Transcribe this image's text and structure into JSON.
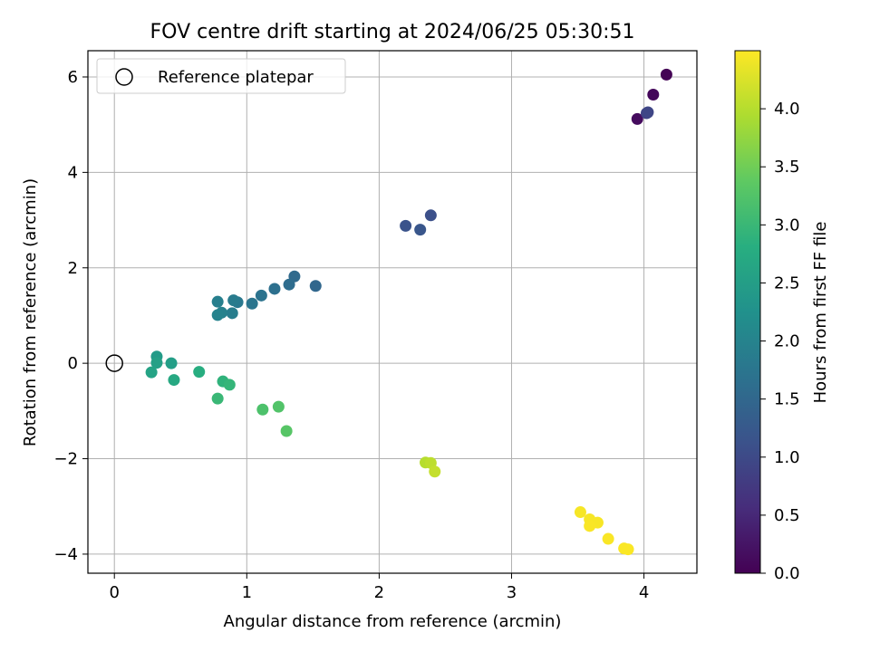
{
  "chart_data": {
    "type": "scatter",
    "title": "FOV centre drift starting at 2024/06/25 05:30:51",
    "xlabel": "Angular distance from reference (arcmin)",
    "ylabel": "Rotation from reference (arcmin)",
    "xlim": [
      -0.2,
      4.4
    ],
    "ylim": [
      -4.4,
      6.55
    ],
    "xticks": [
      0,
      1,
      2,
      3,
      4
    ],
    "xtick_labels": [
      "0",
      "1",
      "2",
      "3",
      "4"
    ],
    "yticks": [
      -4,
      -2,
      0,
      2,
      4,
      6
    ],
    "ytick_labels": [
      "−4",
      "−2",
      "0",
      "2",
      "4",
      "6"
    ],
    "grid": true,
    "legend": {
      "label": "Reference platepar",
      "placement": "top-left",
      "marker": "open-circle"
    },
    "reference_point": {
      "x": 0,
      "y": 0
    },
    "colormap": "viridis",
    "colorbar": {
      "label": "Hours from first FF file",
      "range": [
        0,
        4.5
      ],
      "ticks": [
        0,
        0.5,
        1,
        1.5,
        2,
        2.5,
        3,
        3.5,
        4
      ],
      "tick_labels": [
        "0.0",
        "0.5",
        "1.0",
        "1.5",
        "2.0",
        "2.5",
        "3.0",
        "3.5",
        "4.0"
      ]
    },
    "points": [
      {
        "x": 4.17,
        "y": 6.05,
        "hours": 0.02
      },
      {
        "x": 4.07,
        "y": 5.63,
        "hours": 0.08
      },
      {
        "x": 3.95,
        "y": 5.12,
        "hours": 0.14
      },
      {
        "x": 4.02,
        "y": 5.24,
        "hours": 0.9
      },
      {
        "x": 4.03,
        "y": 5.26,
        "hours": 0.95
      },
      {
        "x": 2.39,
        "y": 3.1,
        "hours": 1.1
      },
      {
        "x": 2.2,
        "y": 2.88,
        "hours": 1.15
      },
      {
        "x": 2.31,
        "y": 2.8,
        "hours": 1.2
      },
      {
        "x": 1.52,
        "y": 1.62,
        "hours": 1.5
      },
      {
        "x": 1.36,
        "y": 1.82,
        "hours": 1.55
      },
      {
        "x": 1.32,
        "y": 1.65,
        "hours": 1.6
      },
      {
        "x": 1.21,
        "y": 1.56,
        "hours": 1.65
      },
      {
        "x": 1.11,
        "y": 1.42,
        "hours": 1.7
      },
      {
        "x": 1.04,
        "y": 1.25,
        "hours": 1.75
      },
      {
        "x": 0.93,
        "y": 1.28,
        "hours": 1.8
      },
      {
        "x": 0.9,
        "y": 1.32,
        "hours": 1.85
      },
      {
        "x": 0.89,
        "y": 1.05,
        "hours": 1.88
      },
      {
        "x": 0.78,
        "y": 1.29,
        "hours": 1.92
      },
      {
        "x": 0.81,
        "y": 1.06,
        "hours": 1.96
      },
      {
        "x": 0.78,
        "y": 1.01,
        "hours": 2.0
      },
      {
        "x": 0.32,
        "y": 0.14,
        "hours": 2.45
      },
      {
        "x": 0.43,
        "y": 0.0,
        "hours": 2.5
      },
      {
        "x": 0.32,
        "y": 0.01,
        "hours": 2.55
      },
      {
        "x": 0.28,
        "y": -0.19,
        "hours": 2.6
      },
      {
        "x": 0.45,
        "y": -0.35,
        "hours": 2.7
      },
      {
        "x": 0.64,
        "y": -0.18,
        "hours": 2.8
      },
      {
        "x": 0.82,
        "y": -0.38,
        "hours": 2.9
      },
      {
        "x": 0.87,
        "y": -0.45,
        "hours": 2.95
      },
      {
        "x": 0.78,
        "y": -0.74,
        "hours": 3.0
      },
      {
        "x": 1.12,
        "y": -0.97,
        "hours": 3.2
      },
      {
        "x": 1.24,
        "y": -0.91,
        "hours": 3.25
      },
      {
        "x": 1.3,
        "y": -1.42,
        "hours": 3.3
      },
      {
        "x": 2.35,
        "y": -2.08,
        "hours": 4.0
      },
      {
        "x": 2.39,
        "y": -2.09,
        "hours": 4.05
      },
      {
        "x": 2.42,
        "y": -2.27,
        "hours": 4.1
      },
      {
        "x": 3.52,
        "y": -3.12,
        "hours": 4.45
      },
      {
        "x": 3.59,
        "y": -3.27,
        "hours": 4.45
      },
      {
        "x": 3.65,
        "y": -3.34,
        "hours": 4.46
      },
      {
        "x": 3.59,
        "y": -3.41,
        "hours": 4.47
      },
      {
        "x": 3.73,
        "y": -3.68,
        "hours": 4.47
      },
      {
        "x": 3.85,
        "y": -3.88,
        "hours": 4.48
      },
      {
        "x": 3.88,
        "y": -3.9,
        "hours": 4.48
      }
    ]
  }
}
